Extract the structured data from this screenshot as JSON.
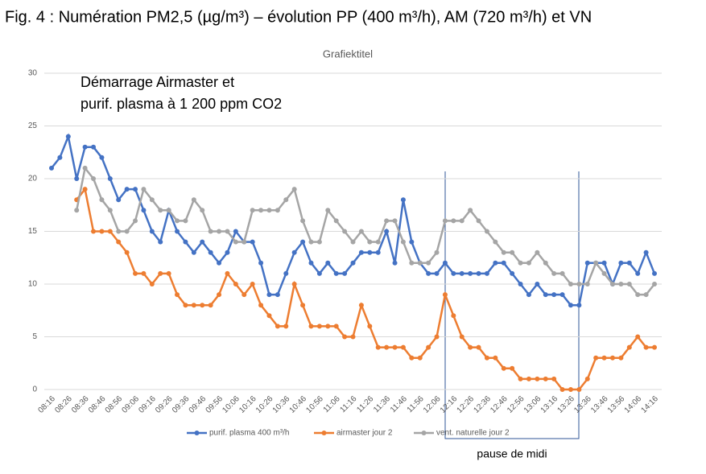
{
  "chart_data": {
    "type": "line",
    "figure_title": "Fig. 4 : Numération PM2,5 (µg/m³) – évolution PP (400 m³/h), AM (720 m³/h) et VN",
    "title": "Grafiektitel",
    "annotation": [
      "Démarrage Airmaster et",
      "purif. plasma à 1 200 ppm CO2"
    ],
    "bracket_label": "pause de midi",
    "categories": [
      "08:16",
      null,
      "08:26",
      null,
      "08:36",
      null,
      "08:46",
      null,
      "08:56",
      null,
      "09:06",
      null,
      "09:16",
      null,
      "09:26",
      null,
      "09:36",
      null,
      "09:46",
      null,
      "09:56",
      null,
      "10:06",
      null,
      "10:16",
      null,
      "10:26",
      null,
      "10:36",
      null,
      "10:46",
      null,
      "10:56",
      null,
      "11:06",
      null,
      "11:16",
      null,
      "11:26",
      null,
      "11:36",
      null,
      "11:46",
      null,
      "11:56",
      null,
      "12:06",
      null,
      "12:16",
      null,
      "12:26",
      null,
      "12:36",
      null,
      "12:46",
      null,
      "12:56",
      null,
      "13:06",
      null,
      "13:16",
      null,
      "13:26",
      null,
      "13:36",
      null,
      "13:46",
      null,
      "13:56",
      null,
      "14:06",
      null,
      "14:16"
    ],
    "series": [
      {
        "name": "purif. plasma 400 m³/h",
        "color": "#4472c4",
        "values": [
          21,
          22,
          24,
          20,
          23,
          23,
          22,
          20,
          18,
          19,
          19,
          17,
          15,
          14,
          17,
          15,
          14,
          13,
          14,
          13,
          12,
          13,
          15,
          14,
          14,
          12,
          9,
          9,
          11,
          13,
          14,
          12,
          11,
          12,
          11,
          11,
          12,
          13,
          13,
          13,
          15,
          12,
          18,
          14,
          12,
          11,
          11,
          12,
          11,
          11,
          11,
          11,
          11,
          12,
          12,
          11,
          10,
          9,
          10,
          9,
          9,
          9,
          8,
          8,
          12,
          12,
          12,
          10,
          12,
          12,
          11,
          13,
          11
        ]
      },
      {
        "name": "airmaster jour 2",
        "color": "#ed7d31",
        "values": [
          null,
          null,
          null,
          18,
          19,
          15,
          15,
          15,
          14,
          13,
          11,
          11,
          10,
          11,
          11,
          9,
          8,
          8,
          8,
          8,
          9,
          11,
          10,
          9,
          10,
          8,
          7,
          6,
          6,
          10,
          8,
          6,
          6,
          6,
          6,
          5,
          5,
          8,
          6,
          4,
          4,
          4,
          4,
          3,
          3,
          4,
          5,
          9,
          7,
          5,
          4,
          4,
          3,
          3,
          2,
          2,
          1,
          1,
          1,
          1,
          1,
          0,
          0,
          0,
          1,
          3,
          3,
          3,
          3,
          4,
          5,
          4,
          4
        ]
      },
      {
        "name": "vent. naturelle jour 2",
        "color": "#a5a5a5",
        "values": [
          null,
          null,
          null,
          17,
          21,
          20,
          18,
          17,
          15,
          15,
          16,
          19,
          18,
          17,
          17,
          16,
          16,
          18,
          17,
          15,
          15,
          15,
          14,
          14,
          17,
          17,
          17,
          17,
          18,
          19,
          16,
          14,
          14,
          17,
          16,
          15,
          14,
          15,
          14,
          14,
          16,
          16,
          14,
          12,
          12,
          12,
          13,
          16,
          16,
          16,
          17,
          16,
          15,
          14,
          13,
          13,
          12,
          12,
          13,
          12,
          11,
          11,
          10,
          10,
          10,
          12,
          11,
          10,
          10,
          10,
          9,
          9,
          10
        ]
      }
    ],
    "ylim": [
      0,
      30
    ],
    "yticks": [
      0,
      5,
      10,
      15,
      20,
      25,
      30
    ],
    "grid": true,
    "legend": "bottom"
  }
}
